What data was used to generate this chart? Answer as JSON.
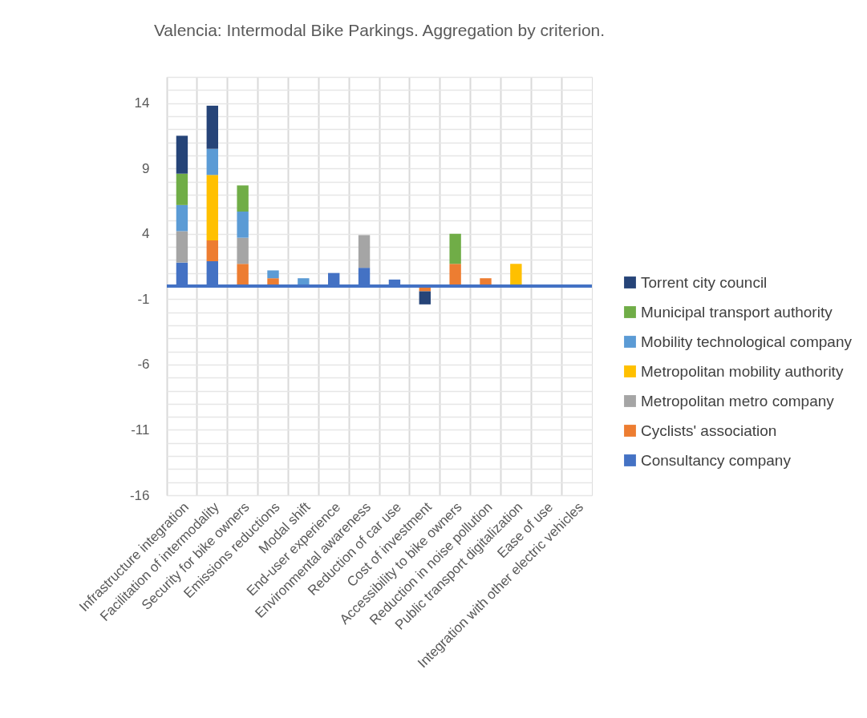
{
  "chart_data": {
    "type": "bar",
    "title": "Valencia: Intermodal Bike Parkings. Aggregation by criterion.",
    "stacked": true,
    "categories": [
      "Infrastructure integration",
      "Facilitation of intermodality",
      "Security for bike owners",
      "Emissions reductions",
      "Modal shift",
      "End-user experience",
      "Environmental awareness",
      "Reduction of car use",
      "Cost of investment",
      "Accessibility to bike owners",
      "Reduction in noise pollution",
      "Public transport digitalization",
      "Ease of use",
      "Integration with other electric vehicles"
    ],
    "series": [
      {
        "name": "Consultancy company",
        "color": "#4472c4",
        "values": [
          1.8,
          1.9,
          0,
          0,
          0,
          1.0,
          1.4,
          0.5,
          0,
          0,
          0,
          0,
          0,
          0
        ]
      },
      {
        "name": "Cyclists' association",
        "color": "#ed7d31",
        "values": [
          0,
          1.6,
          1.7,
          0.6,
          0,
          0,
          0,
          0,
          -0.4,
          1.7,
          0.6,
          0,
          0,
          0
        ]
      },
      {
        "name": "Metropolitan metro company",
        "color": "#a5a5a5",
        "values": [
          2.4,
          0,
          2.0,
          0,
          0,
          0,
          2.5,
          0,
          0,
          0,
          0,
          0,
          0,
          0
        ]
      },
      {
        "name": "Metropolitan mobility authority",
        "color": "#ffc000",
        "values": [
          0,
          5.0,
          0,
          0,
          0,
          0,
          0,
          0,
          0,
          0,
          0,
          1.7,
          0,
          0
        ]
      },
      {
        "name": "Mobility technological company",
        "color": "#5b9bd5",
        "values": [
          2.0,
          2.0,
          2.0,
          0.6,
          0.6,
          0,
          0,
          0,
          0,
          0,
          0,
          0,
          0,
          0
        ]
      },
      {
        "name": "Municipal transport authority",
        "color": "#70ad47",
        "values": [
          2.4,
          0,
          2.0,
          0,
          0,
          0,
          0,
          0,
          0,
          2.3,
          0,
          0,
          0,
          0
        ]
      },
      {
        "name": "Torrent city council",
        "color": "#264478",
        "values": [
          2.9,
          3.3,
          0,
          0,
          0,
          0,
          0,
          0,
          -1.0,
          0,
          0,
          0,
          0,
          0
        ]
      }
    ],
    "ylim": [
      -16,
      16
    ],
    "yticks": [
      -16,
      -11,
      -6,
      -1,
      4,
      9,
      14
    ],
    "grid": true,
    "legend": "right",
    "ref_lines": [
      {
        "axis": "y",
        "value": 0,
        "color": "#4472c4"
      }
    ]
  }
}
